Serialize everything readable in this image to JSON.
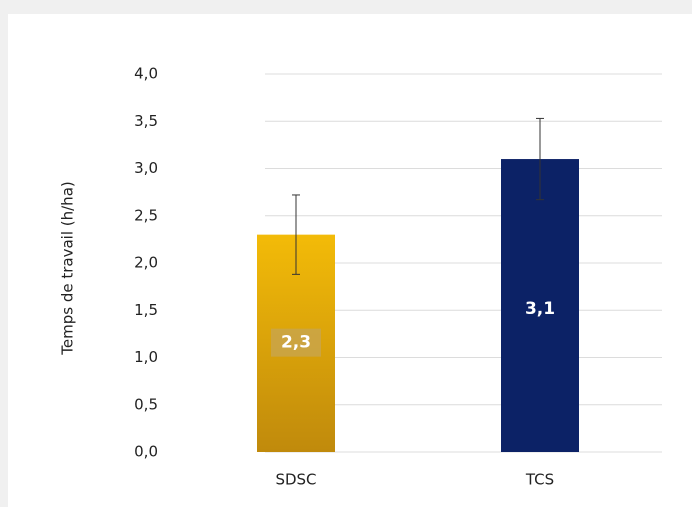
{
  "chart_data": {
    "type": "bar",
    "y_label": "Temps de travail (h/ha)",
    "categories": [
      "SDSC",
      "TCS"
    ],
    "series": [
      {
        "colors": [
          "#e9ae08",
          "#0c2266"
        ],
        "values": [
          2.3,
          3.1
        ],
        "value_labels": [
          "2,3",
          "3,1"
        ],
        "errors": [
          0.42,
          0.43
        ]
      }
    ],
    "ylim": [
      0,
      4
    ],
    "yticks": [
      {
        "value": 0,
        "label": "0,0"
      },
      {
        "value": 0.5,
        "label": "0,5"
      },
      {
        "value": 1,
        "label": "1,0"
      },
      {
        "value": 1.5,
        "label": "1,5"
      },
      {
        "value": 2,
        "label": "2,0"
      },
      {
        "value": 2.5,
        "label": "2,5"
      },
      {
        "value": 3,
        "label": "3,0"
      },
      {
        "value": 3.5,
        "label": "3,5"
      },
      {
        "value": 4,
        "label": "4,0"
      }
    ],
    "grid": true
  }
}
